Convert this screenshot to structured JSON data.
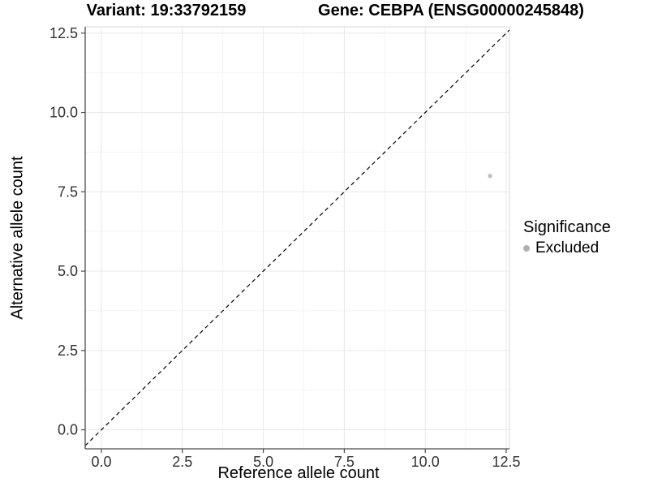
{
  "chart_data": {
    "type": "scatter",
    "title_left": "Variant: 19:33792159",
    "title_right": "Gene: CEBPA (ENSG00000245848)",
    "xlabel": "Reference allele count",
    "ylabel": "Alternative allele count",
    "xlim": [
      -0.5,
      12.6
    ],
    "ylim": [
      -0.6,
      12.7
    ],
    "x_ticks": {
      "values": [
        0,
        2.5,
        5,
        7.5,
        10,
        12.5
      ],
      "labels": [
        "0.0",
        "2.5",
        "5.0",
        "7.5",
        "10.0",
        "12.5"
      ]
    },
    "y_ticks": {
      "values": [
        0,
        2.5,
        5,
        7.5,
        10,
        12.5
      ],
      "labels": [
        "0.0",
        "2.5",
        "5.0",
        "7.5",
        "10.0",
        "12.5"
      ]
    },
    "x_minor_ticks": [
      1.25,
      3.75,
      6.25,
      8.75,
      11.25
    ],
    "y_minor_ticks": [
      1.25,
      3.75,
      6.25,
      8.75,
      11.25
    ],
    "grid": true,
    "reference_line": {
      "type": "abline",
      "slope": 1,
      "intercept": 0,
      "linestyle": "dashed",
      "color": "#000000"
    },
    "series": [
      {
        "name": "Excluded",
        "color": "#bebebe",
        "points": [
          {
            "x": 12,
            "y": 8
          }
        ]
      }
    ],
    "legend": {
      "title": "Significance",
      "position": "right",
      "items": [
        {
          "label": "Excluded",
          "color": "#b0b0b0"
        }
      ]
    }
  },
  "style_colors": {
    "grid_major": "#e8e8e8",
    "grid_minor": "#f4f4f4",
    "panel_border": "#d9d9d9",
    "axis_line": "#4d4d4d",
    "tick_mark": "#4d4d4d",
    "tick_label": "#333333"
  }
}
